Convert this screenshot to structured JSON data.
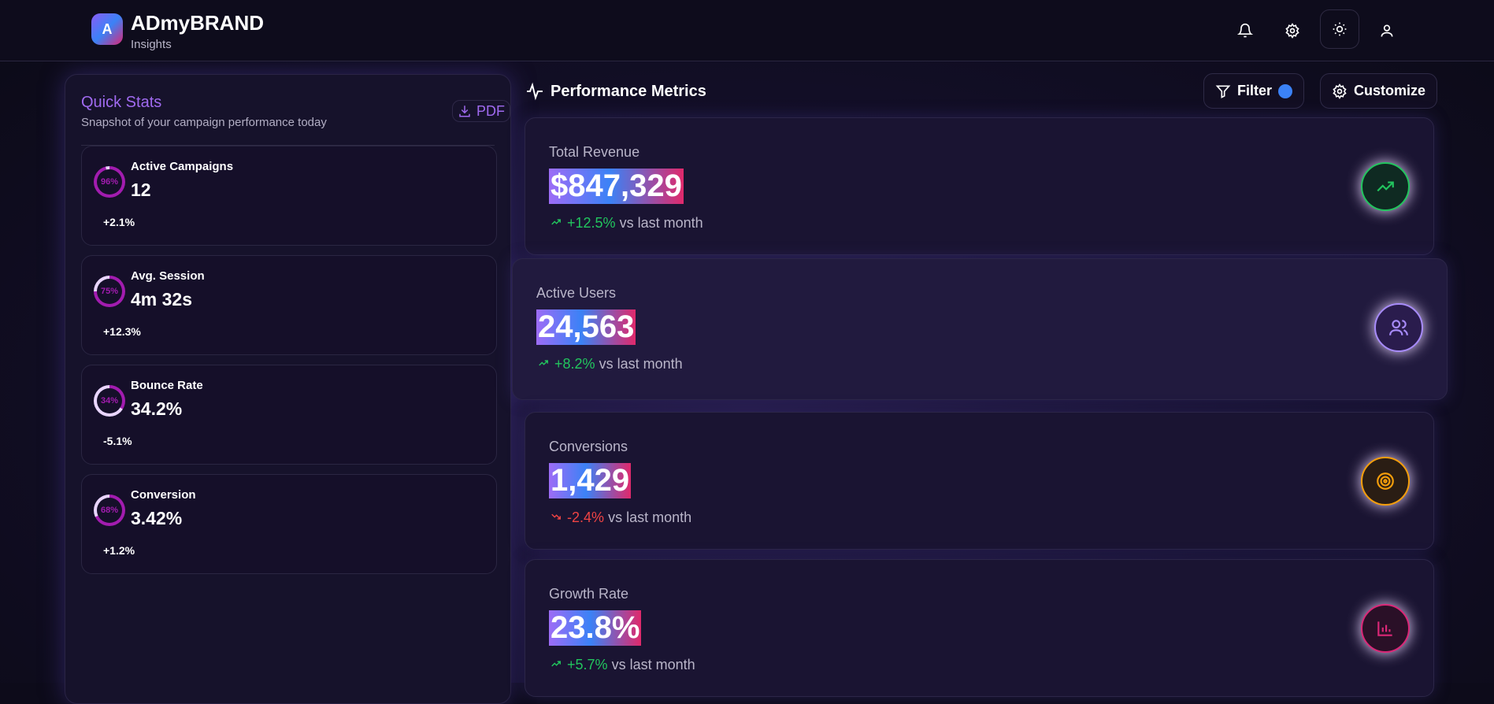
{
  "header": {
    "logo_letter": "A",
    "brand": "ADmyBRAND",
    "subtitle": "Insights",
    "icons": [
      "bell-icon",
      "gear-icon",
      "sun-icon",
      "user-icon"
    ]
  },
  "quick_stats": {
    "title": "Quick Stats",
    "subtitle": "Snapshot of your campaign performance today",
    "pdf_label": "PDF",
    "items": [
      {
        "label": "Active Campaigns",
        "value": "12",
        "change": "+2.1%",
        "ring": "96%",
        "percent": 96
      },
      {
        "label": "Avg. Session",
        "value": "4m 32s",
        "change": "+12.3%",
        "ring": "75%",
        "percent": 75
      },
      {
        "label": "Bounce Rate",
        "value": "34.2%",
        "change": "-5.1%",
        "ring": "34%",
        "percent": 34
      },
      {
        "label": "Conversion",
        "value": "3.42%",
        "change": "+1.2%",
        "ring": "68%",
        "percent": 68
      }
    ]
  },
  "metrics": {
    "title": "Performance Metrics",
    "filter_label": "Filter",
    "customize_label": "Customize",
    "cards": [
      {
        "label": "Total Revenue",
        "value": "$847,329",
        "change": "+12.5%",
        "suffix": "vs last month",
        "trend": "up",
        "icon": "trending-up-icon",
        "color": "#22c55e"
      },
      {
        "label": "Active Users",
        "value": "24,563",
        "change": "+8.2%",
        "suffix": "vs last month",
        "trend": "up",
        "icon": "users-icon",
        "color": "#a78bfa"
      },
      {
        "label": "Conversions",
        "value": "1,429",
        "change": "-2.4%",
        "suffix": "vs last month",
        "trend": "down",
        "icon": "target-icon",
        "color": "#f59e0b"
      },
      {
        "label": "Growth Rate",
        "value": "23.8%",
        "change": "+5.7%",
        "suffix": "vs last month",
        "trend": "up",
        "icon": "bar-chart-icon",
        "color": "#db2777"
      }
    ]
  }
}
